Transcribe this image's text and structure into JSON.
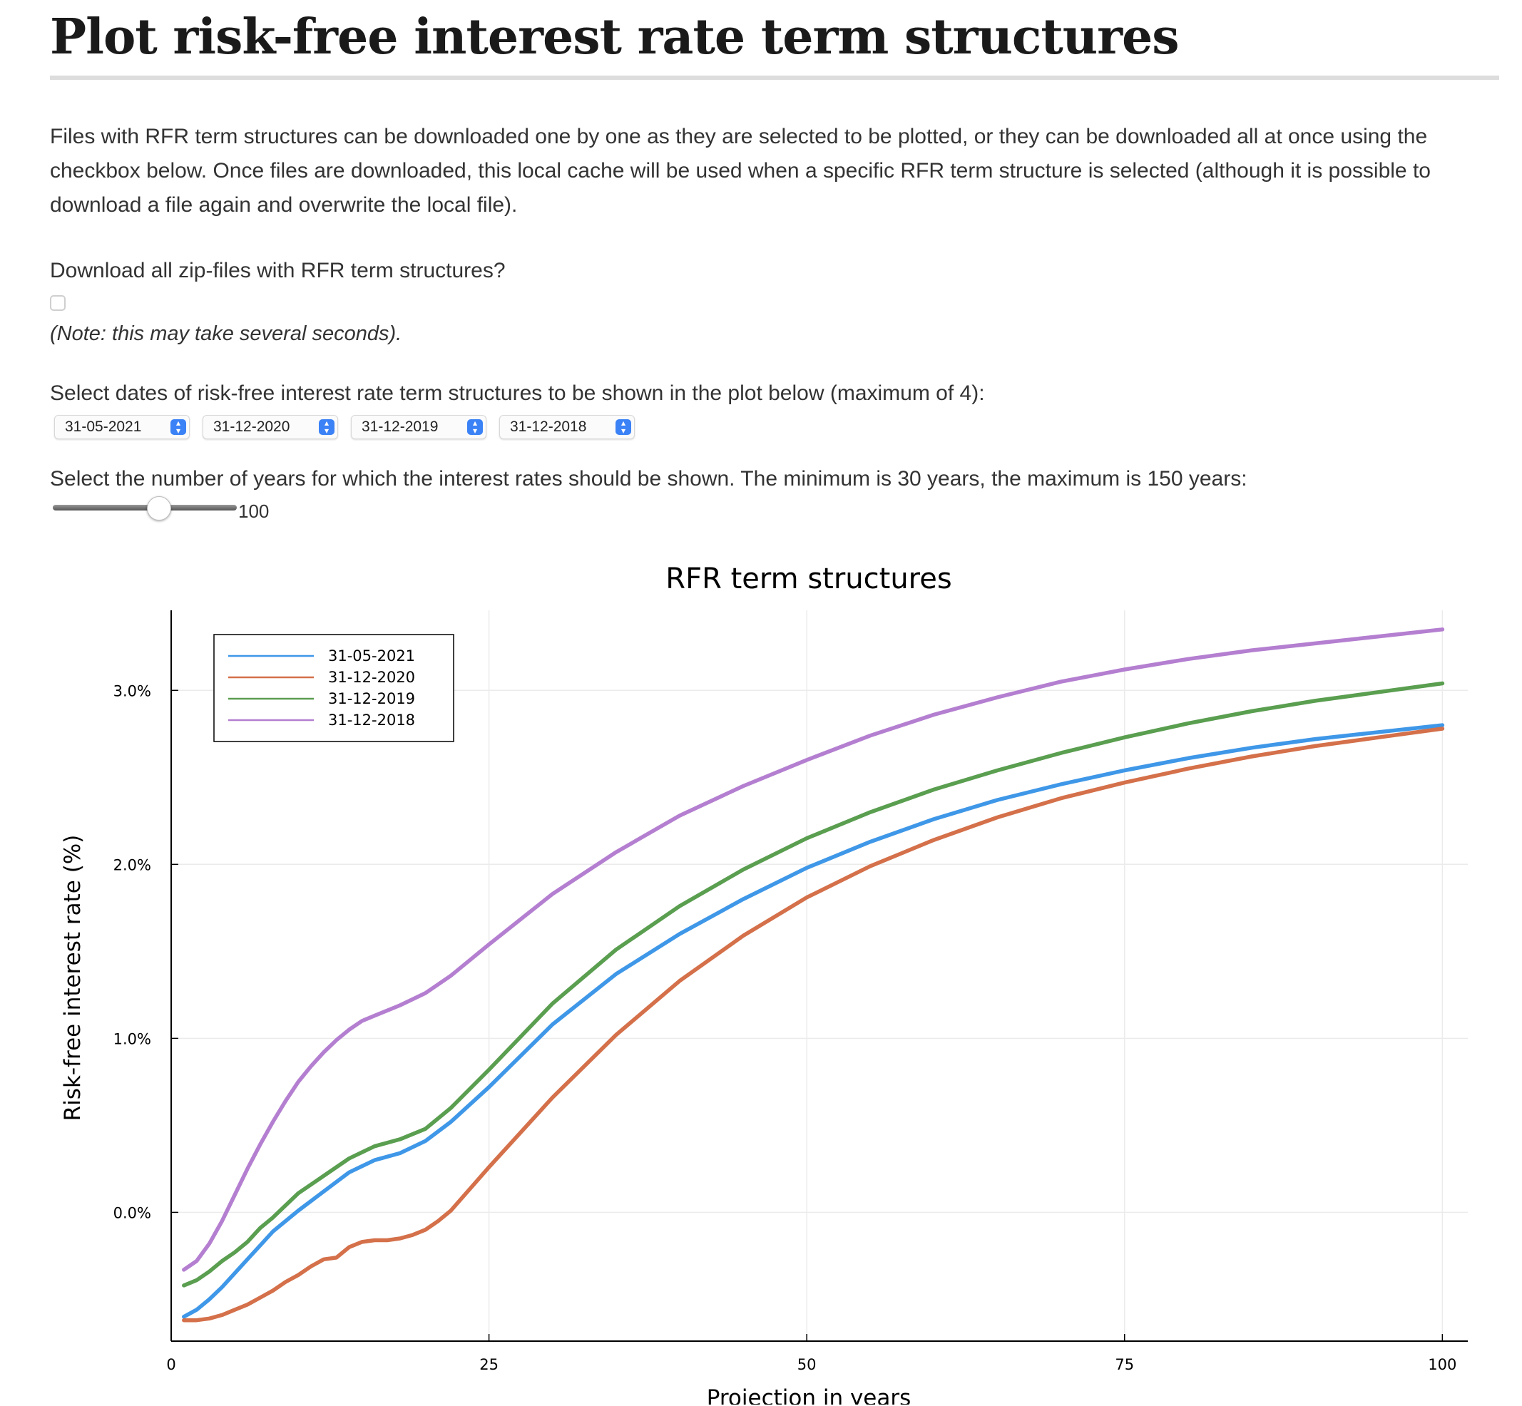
{
  "page": {
    "title": "Plot risk-free interest rate term structures",
    "intro": "Files with RFR term structures can be downloaded one by one as they are selected to be plotted, or they can be downloaded all at once using the checkbox below. Once files are downloaded, this local cache will be used when a specific RFR term structure is selected (although it is possible to download a file again and overwrite the local file).",
    "download_question": "Download all zip-files with RFR term structures?",
    "download_note": "(Note: this may take several seconds).",
    "select_dates_label": "Select dates of risk-free interest rate term structures to be shown in the plot below (maximum of 4):",
    "date_selects": [
      "31-05-2021",
      "31-12-2020",
      "31-12-2019",
      "31-12-2018"
    ],
    "years_label": "Select the number of years for which the interest rates should be shown. The minimum is 30 years, the maximum is 150 years:",
    "years_slider": {
      "value": "100",
      "min": 30,
      "max": 150
    }
  },
  "chart_data": {
    "type": "line",
    "title": "RFR term structures",
    "xlabel": "Projection in years",
    "ylabel": "Risk-free interest rate (%)",
    "xlim": [
      0,
      102
    ],
    "ylim": [
      -0.74,
      3.46
    ],
    "x_ticks": [
      0,
      25,
      50,
      75,
      100
    ],
    "x_tick_labels": [
      "0",
      "25",
      "50",
      "75",
      "100"
    ],
    "y_ticks": [
      0,
      1,
      2,
      3
    ],
    "y_tick_labels": [
      "0.0%",
      "1.0%",
      "2.0%",
      "3.0%"
    ],
    "grid": true,
    "legend_position": "top-left",
    "series": [
      {
        "name": "31-05-2021",
        "color": "#3f97e8",
        "x": [
          1,
          2,
          3,
          4,
          5,
          6,
          7,
          8,
          9,
          10,
          12,
          14,
          16,
          18,
          20,
          22,
          25,
          30,
          35,
          40,
          45,
          50,
          55,
          60,
          65,
          70,
          75,
          80,
          85,
          90,
          95,
          100
        ],
        "y": [
          -0.6,
          -0.56,
          -0.5,
          -0.43,
          -0.35,
          -0.27,
          -0.19,
          -0.11,
          -0.05,
          0.01,
          0.12,
          0.23,
          0.3,
          0.34,
          0.41,
          0.52,
          0.72,
          1.08,
          1.37,
          1.6,
          1.8,
          1.98,
          2.13,
          2.26,
          2.37,
          2.46,
          2.54,
          2.61,
          2.67,
          2.72,
          2.76,
          2.8
        ]
      },
      {
        "name": "31-12-2020",
        "color": "#d4704a",
        "x": [
          1,
          2,
          3,
          4,
          5,
          6,
          7,
          8,
          9,
          10,
          11,
          12,
          13,
          14,
          15,
          16,
          17,
          18,
          19,
          20,
          21,
          22,
          25,
          30,
          35,
          40,
          45,
          50,
          55,
          60,
          65,
          70,
          75,
          80,
          85,
          90,
          95,
          100
        ],
        "y": [
          -0.62,
          -0.62,
          -0.61,
          -0.59,
          -0.56,
          -0.53,
          -0.49,
          -0.45,
          -0.4,
          -0.36,
          -0.31,
          -0.27,
          -0.26,
          -0.2,
          -0.17,
          -0.16,
          -0.16,
          -0.15,
          -0.13,
          -0.1,
          -0.05,
          0.01,
          0.26,
          0.66,
          1.02,
          1.33,
          1.59,
          1.81,
          1.99,
          2.14,
          2.27,
          2.38,
          2.47,
          2.55,
          2.62,
          2.68,
          2.73,
          2.78
        ]
      },
      {
        "name": "31-12-2019",
        "color": "#5a9e50",
        "x": [
          1,
          2,
          3,
          4,
          5,
          6,
          7,
          8,
          9,
          10,
          12,
          14,
          16,
          18,
          20,
          22,
          25,
          30,
          35,
          40,
          45,
          50,
          55,
          60,
          65,
          70,
          75,
          80,
          85,
          90,
          95,
          100
        ],
        "y": [
          -0.42,
          -0.39,
          -0.34,
          -0.28,
          -0.23,
          -0.17,
          -0.09,
          -0.03,
          0.04,
          0.11,
          0.21,
          0.31,
          0.38,
          0.42,
          0.48,
          0.6,
          0.82,
          1.2,
          1.51,
          1.76,
          1.97,
          2.15,
          2.3,
          2.43,
          2.54,
          2.64,
          2.73,
          2.81,
          2.88,
          2.94,
          2.99,
          3.04
        ]
      },
      {
        "name": "31-12-2018",
        "color": "#b47fd0",
        "x": [
          1,
          2,
          3,
          4,
          5,
          6,
          7,
          8,
          9,
          10,
          11,
          12,
          13,
          14,
          15,
          16,
          18,
          20,
          22,
          25,
          30,
          35,
          40,
          45,
          50,
          55,
          60,
          65,
          70,
          75,
          80,
          85,
          90,
          95,
          100
        ],
        "y": [
          -0.33,
          -0.28,
          -0.18,
          -0.05,
          0.1,
          0.25,
          0.39,
          0.52,
          0.64,
          0.75,
          0.84,
          0.92,
          0.99,
          1.05,
          1.1,
          1.13,
          1.19,
          1.26,
          1.36,
          1.54,
          1.83,
          2.07,
          2.28,
          2.45,
          2.6,
          2.74,
          2.86,
          2.96,
          3.05,
          3.12,
          3.18,
          3.23,
          3.27,
          3.31,
          3.35
        ]
      }
    ]
  }
}
